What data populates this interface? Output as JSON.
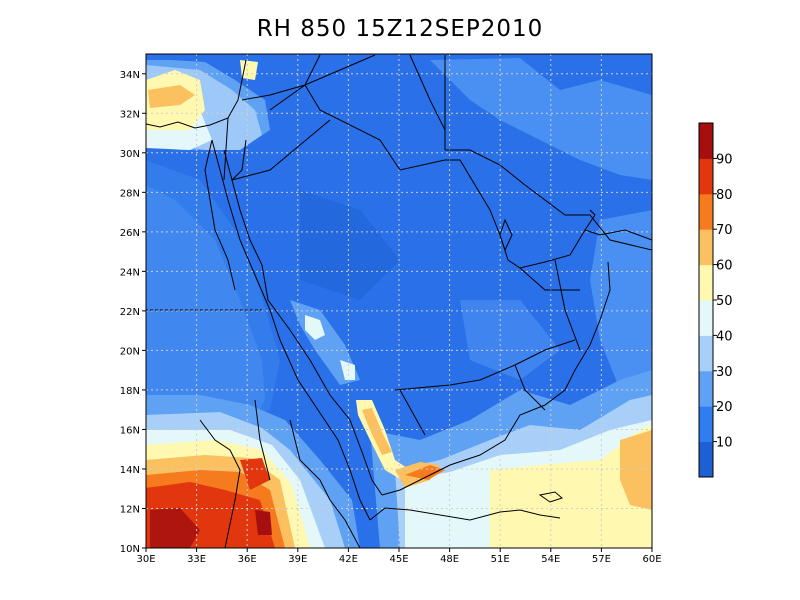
{
  "title": "RH 850 15Z12SEP2010",
  "lat_labels": [
    "10N",
    "12N",
    "14N",
    "16N",
    "18N",
    "20N",
    "22N",
    "24N",
    "26N",
    "28N",
    "30N",
    "32N",
    "34N"
  ],
  "lon_labels": [
    "30E",
    "33E",
    "36E",
    "39E",
    "42E",
    "45E",
    "48E",
    "51E",
    "54E",
    "57E",
    "60E"
  ],
  "lat_values": [
    10,
    12,
    14,
    16,
    18,
    20,
    22,
    24,
    26,
    28,
    30,
    32,
    34
  ],
  "lon_values": [
    30,
    33,
    36,
    39,
    42,
    45,
    48,
    51,
    54,
    57,
    60
  ],
  "extent": {
    "lon_min": 30,
    "lon_max": 60,
    "lat_min": 10,
    "lat_max": 35
  },
  "colorbar": {
    "labels": [
      "10",
      "20",
      "30",
      "40",
      "50",
      "60",
      "70",
      "80",
      "90"
    ],
    "colors": [
      "#1e5fd3",
      "#2f7df0",
      "#5fa2f4",
      "#a8cff8",
      "#e4f8fa",
      "#fff8b0",
      "#fbc160",
      "#f57b1e",
      "#e2360f",
      "#a50f0f"
    ]
  },
  "colors": {
    "land_base": "#2a70e8",
    "boundary": "#000000",
    "grid": "#cfcfcf"
  }
}
